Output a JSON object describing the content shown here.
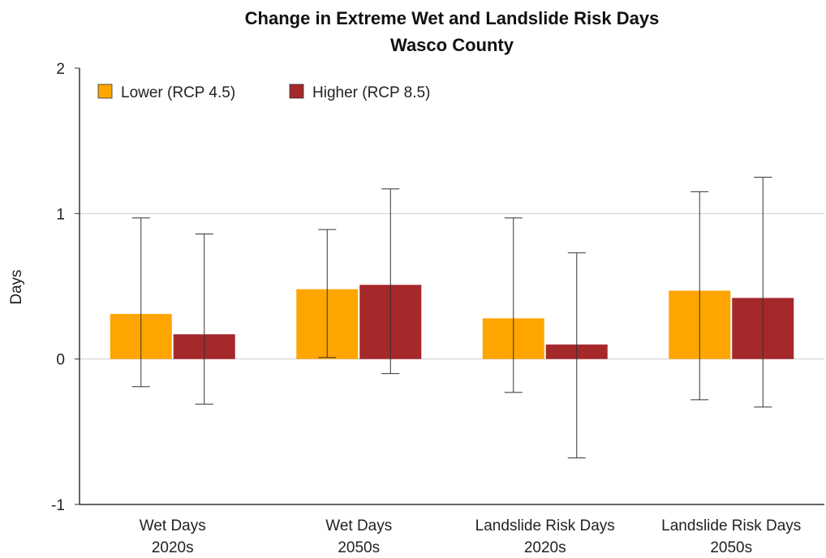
{
  "chart_data": {
    "type": "bar",
    "title": "Change in Extreme Wet and Landslide Risk Days",
    "subtitle": "Wasco County",
    "ylabel": "Days",
    "xlabel": "",
    "ylim": [
      -1,
      2
    ],
    "yticks": [
      -1,
      0,
      1,
      2
    ],
    "categories": [
      [
        "Wet Days",
        "2020s"
      ],
      [
        "Wet Days",
        "2050s"
      ],
      [
        "Landslide Risk Days",
        "2020s"
      ],
      [
        "Landslide Risk Days",
        "2050s"
      ]
    ],
    "series": [
      {
        "name": "Lower (RCP 4.5)",
        "color": "#FFA500",
        "values": [
          0.31,
          0.48,
          0.28,
          0.47
        ],
        "error_low": [
          -0.19,
          0.01,
          -0.23,
          -0.28
        ],
        "error_high": [
          0.97,
          0.89,
          0.97,
          1.15
        ]
      },
      {
        "name": "Higher (RCP 8.5)",
        "color": "#A5282B",
        "values": [
          0.17,
          0.51,
          0.1,
          0.42
        ],
        "error_low": [
          -0.31,
          -0.1,
          -0.68,
          -0.33
        ],
        "error_high": [
          0.86,
          1.17,
          0.73,
          1.25
        ]
      }
    ],
    "grid": "horizontal",
    "legend_position": "top-left"
  }
}
